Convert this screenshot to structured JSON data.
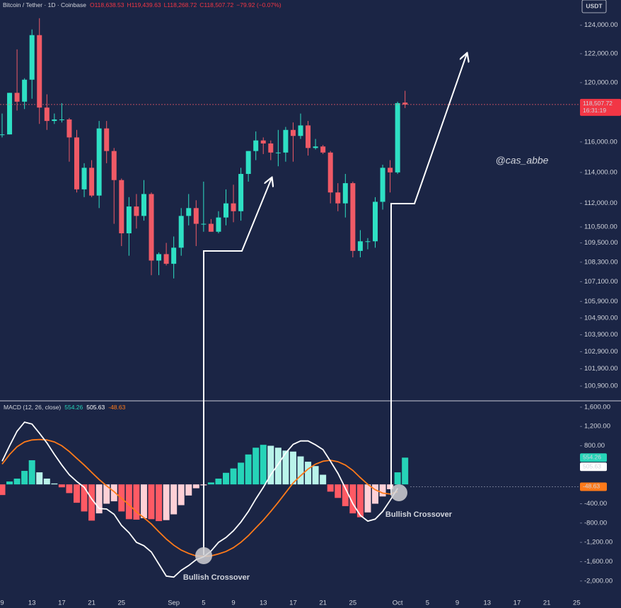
{
  "chart_data": [
    {
      "type": "candlestick",
      "title": "Bitcoin / Tether · 1D · Coinbase",
      "ohlc_labels": [
        "O118,638.53",
        "H119,439.63",
        "L118,268.72",
        "C118,507.72",
        "−79.92 (−0.07%)"
      ],
      "currency": "USDT",
      "watermark": "@cas_abbe",
      "last_price_label": "118,507.72",
      "countdown": "16:31:19",
      "log": true,
      "up_color": "#2ee0c4",
      "down_color": "#f05a66",
      "x": [
        "08-09",
        "08-10",
        "08-11",
        "08-12",
        "08-13",
        "08-14",
        "08-15",
        "08-16",
        "08-17",
        "08-18",
        "08-19",
        "08-20",
        "08-21",
        "08-22",
        "08-23",
        "08-24",
        "08-25",
        "08-26",
        "08-27",
        "08-28",
        "08-29",
        "08-30",
        "08-31",
        "09-01",
        "09-02",
        "09-03",
        "09-04",
        "09-05",
        "09-06",
        "09-07",
        "09-08",
        "09-09",
        "09-10",
        "09-11",
        "09-12",
        "09-13",
        "09-14",
        "09-15",
        "09-16",
        "09-17",
        "09-18",
        "09-19",
        "09-20",
        "09-21",
        "09-22",
        "09-23",
        "09-24",
        "09-25",
        "09-26",
        "09-27",
        "09-28",
        "09-29",
        "09-30",
        "10-01",
        "10-02"
      ],
      "open": [
        116500,
        116500,
        119300,
        118700,
        120200,
        123300,
        118300,
        117400,
        117500,
        117500,
        116300,
        112900,
        114300,
        112500,
        116900,
        115400,
        113500,
        110100,
        111800,
        111200,
        112600,
        108400,
        108800,
        108200,
        109200,
        111200,
        111700,
        110700,
        110700,
        110200,
        111100,
        112000,
        111500,
        113900,
        115400,
        116100,
        115900,
        115300,
        115300,
        116800,
        116400,
        117100,
        115600,
        115700,
        115300,
        112700,
        112000,
        113300,
        109000,
        109600,
        109600,
        112100,
        114300,
        114000,
        118638.53
      ],
      "high": [
        117900,
        119300,
        122300,
        120300,
        123700,
        124500,
        119200,
        117900,
        118600,
        117600,
        116800,
        114600,
        114800,
        117400,
        117400,
        115600,
        113600,
        112400,
        112600,
        113500,
        112700,
        108900,
        109500,
        109900,
        111700,
        112600,
        112200,
        113400,
        111000,
        111500,
        112900,
        113200,
        114300,
        115400,
        116700,
        116300,
        116100,
        116800,
        117000,
        117300,
        117900,
        117400,
        116200,
        115800,
        115400,
        113300,
        113900,
        113400,
        110300,
        109800,
        112400,
        114500,
        114800,
        118700,
        119439.63
      ],
      "low": [
        116300,
        116500,
        118100,
        118200,
        118900,
        117200,
        116800,
        117200,
        117300,
        114700,
        112700,
        112400,
        112400,
        111700,
        114600,
        110700,
        109300,
        108700,
        110400,
        110900,
        107500,
        107500,
        108100,
        107300,
        108700,
        110600,
        109300,
        110200,
        110200,
        110100,
        110600,
        110800,
        110900,
        113400,
        114800,
        115200,
        114800,
        114400,
        114700,
        114700,
        116200,
        115100,
        115500,
        115200,
        112000,
        111500,
        111100,
        108600,
        108600,
        109100,
        109200,
        111600,
        112700,
        113900,
        118268.72
      ],
      "close": [
        116500,
        119300,
        118700,
        120200,
        123300,
        118300,
        117400,
        117500,
        117500,
        116300,
        112900,
        114300,
        112500,
        116900,
        115400,
        113500,
        110100,
        111800,
        111200,
        112600,
        108400,
        108800,
        108200,
        109200,
        111200,
        111700,
        110700,
        110700,
        110200,
        111100,
        112000,
        111500,
        113900,
        115400,
        116100,
        115900,
        115300,
        115300,
        116800,
        116400,
        117100,
        115600,
        115700,
        115300,
        112700,
        112000,
        113300,
        109000,
        109600,
        109600,
        112100,
        114300,
        114000,
        118600,
        118507.72
      ],
      "ylim": [
        100050,
        125800
      ],
      "yticks": [
        {
          "value": 124000,
          "label": "124,000.00"
        },
        {
          "value": 122000,
          "label": "122,000.00"
        },
        {
          "value": 120000,
          "label": "120,000.00"
        },
        {
          "value": 116000,
          "label": "116,000.00"
        },
        {
          "value": 114000,
          "label": "114,000.00"
        },
        {
          "value": 112000,
          "label": "112,000.00"
        },
        {
          "value": 110500,
          "label": "110,500.00"
        },
        {
          "value": 109500,
          "label": "109,500.00"
        },
        {
          "value": 108300,
          "label": "108,300.00"
        },
        {
          "value": 107100,
          "label": "107,100.00"
        },
        {
          "value": 105900,
          "label": "105,900.00"
        },
        {
          "value": 104900,
          "label": "104,900.00"
        },
        {
          "value": 103900,
          "label": "103,900.00"
        },
        {
          "value": 102900,
          "label": "102,900.00"
        },
        {
          "value": 101900,
          "label": "101,900.00"
        },
        {
          "value": 100900,
          "label": "100,900.00"
        }
      ]
    },
    {
      "type": "macd",
      "title": "MACD (12, 26, close)",
      "current": {
        "histogram": 554.26,
        "macd": 505.63,
        "signal": -48.63
      },
      "annotations": [
        "Bullish Crossover",
        "Bullish Crossover"
      ],
      "histogram": {
        "colors": {
          "rising_positive": "#26d4b8",
          "falling_positive": "#b9f3ea",
          "falling_negative": "#ff5a64",
          "rising_negative": "#ffd0d6"
        },
        "values": [
          -220,
          60,
          120,
          280,
          500,
          250,
          120,
          20,
          -60,
          -180,
          -380,
          -560,
          -750,
          -600,
          -400,
          -350,
          -560,
          -720,
          -730,
          -700,
          -720,
          -760,
          -740,
          -620,
          -430,
          -230,
          -80,
          -20,
          40,
          120,
          240,
          330,
          450,
          620,
          760,
          820,
          800,
          760,
          700,
          680,
          580,
          470,
          380,
          200,
          -150,
          -280,
          -450,
          -600,
          -680,
          -580,
          -400,
          -250,
          -100,
          250,
          554.26
        ]
      },
      "macd": {
        "color": "#ffffff",
        "values": [
          480,
          800,
          1100,
          1290,
          1250,
          1060,
          860,
          620,
          400,
          200,
          60,
          -60,
          -300,
          -500,
          -510,
          -620,
          -850,
          -1000,
          -1200,
          -1270,
          -1400,
          -1650,
          -1900,
          -1920,
          -1780,
          -1680,
          -1560,
          -1500,
          -1380,
          -1200,
          -1100,
          -960,
          -780,
          -560,
          -300,
          -60,
          200,
          420,
          650,
          830,
          900,
          900,
          820,
          720,
          480,
          230,
          -80,
          -400,
          -640,
          -760,
          -720,
          -560,
          -330,
          -80,
          null
        ]
      },
      "signal": {
        "color": "#ff7a1a",
        "values": [
          420,
          620,
          780,
          880,
          920,
          930,
          920,
          880,
          800,
          680,
          540,
          400,
          250,
          100,
          -30,
          -150,
          -290,
          -420,
          -570,
          -690,
          -820,
          -980,
          -1130,
          -1260,
          -1360,
          -1430,
          -1480,
          -1490,
          -1480,
          -1440,
          -1390,
          -1310,
          -1200,
          -1060,
          -900,
          -740,
          -560,
          -370,
          -170,
          30,
          180,
          320,
          420,
          480,
          500,
          470,
          400,
          290,
          140,
          0,
          -110,
          -180,
          -200,
          -150,
          null
        ]
      },
      "ylim": [
        -2340,
        1730
      ],
      "yticks": [
        {
          "value": 1600,
          "label": "1,600.00"
        },
        {
          "value": 1200,
          "label": "1,200.00"
        },
        {
          "value": 800,
          "label": "800.00"
        },
        {
          "value": -400,
          "label": "-400.00"
        },
        {
          "value": -800,
          "label": "-800.00"
        },
        {
          "value": -1200,
          "label": "-1,200.00"
        },
        {
          "value": -1600,
          "label": "-1,600.00"
        },
        {
          "value": -2000,
          "label": "-2,000.00"
        }
      ],
      "xticks": [
        {
          "value": "08-09",
          "label": "9"
        },
        {
          "value": "08-13",
          "label": "13"
        },
        {
          "value": "08-17",
          "label": "17"
        },
        {
          "value": "08-21",
          "label": "21"
        },
        {
          "value": "08-25",
          "label": "25"
        },
        {
          "value": "09-01",
          "label": "Sep"
        },
        {
          "value": "09-05",
          "label": "5"
        },
        {
          "value": "09-09",
          "label": "9"
        },
        {
          "value": "09-13",
          "label": "13"
        },
        {
          "value": "09-17",
          "label": "17"
        },
        {
          "value": "09-21",
          "label": "21"
        },
        {
          "value": "09-25",
          "label": "25"
        },
        {
          "value": "10-01",
          "label": "Oct"
        },
        {
          "value": "10-05",
          "label": "5"
        },
        {
          "value": "10-09",
          "label": "9"
        },
        {
          "value": "10-13",
          "label": "13"
        },
        {
          "value": "10-17",
          "label": "17"
        },
        {
          "value": "10-21",
          "label": "21"
        },
        {
          "value": "10-25",
          "label": "25"
        }
      ]
    }
  ]
}
